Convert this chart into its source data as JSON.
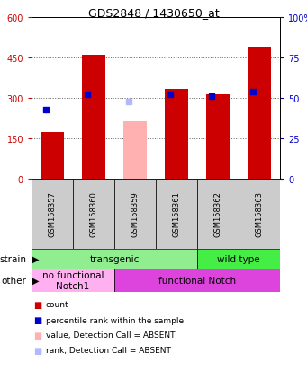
{
  "title": "GDS2848 / 1430650_at",
  "samples": [
    "GSM158357",
    "GSM158360",
    "GSM158359",
    "GSM158361",
    "GSM158362",
    "GSM158363"
  ],
  "count_values": [
    175,
    460,
    null,
    335,
    315,
    490
  ],
  "count_absent": [
    null,
    null,
    215,
    null,
    null,
    null
  ],
  "rank_values": [
    43,
    52,
    null,
    52,
    51,
    54
  ],
  "rank_absent": [
    null,
    null,
    48,
    null,
    null,
    null
  ],
  "ylim_left": [
    0,
    600
  ],
  "ylim_right": [
    0,
    100
  ],
  "yticks_left": [
    0,
    150,
    300,
    450,
    600
  ],
  "yticks_right": [
    0,
    25,
    50,
    75,
    100
  ],
  "left_color": "#cc0000",
  "right_color": "#0000cc",
  "strain_labels": [
    {
      "text": "transgenic",
      "cols": [
        0,
        1,
        2,
        3
      ],
      "color": "#90ee90"
    },
    {
      "text": "wild type",
      "cols": [
        4,
        5
      ],
      "color": "#44ee44"
    }
  ],
  "other_labels": [
    {
      "text": "no functional\nNotch1",
      "cols": [
        0,
        1
      ],
      "color": "#ffb0f0"
    },
    {
      "text": "functional Notch",
      "cols": [
        2,
        3,
        4,
        5
      ],
      "color": "#dd44dd"
    }
  ],
  "strain_row_label": "strain",
  "other_row_label": "other",
  "legend_items": [
    {
      "color": "#cc0000",
      "label": "count"
    },
    {
      "color": "#0000cc",
      "label": "percentile rank within the sample"
    },
    {
      "color": "#ffb0b0",
      "label": "value, Detection Call = ABSENT"
    },
    {
      "color": "#b0b8ff",
      "label": "rank, Detection Call = ABSENT"
    }
  ]
}
